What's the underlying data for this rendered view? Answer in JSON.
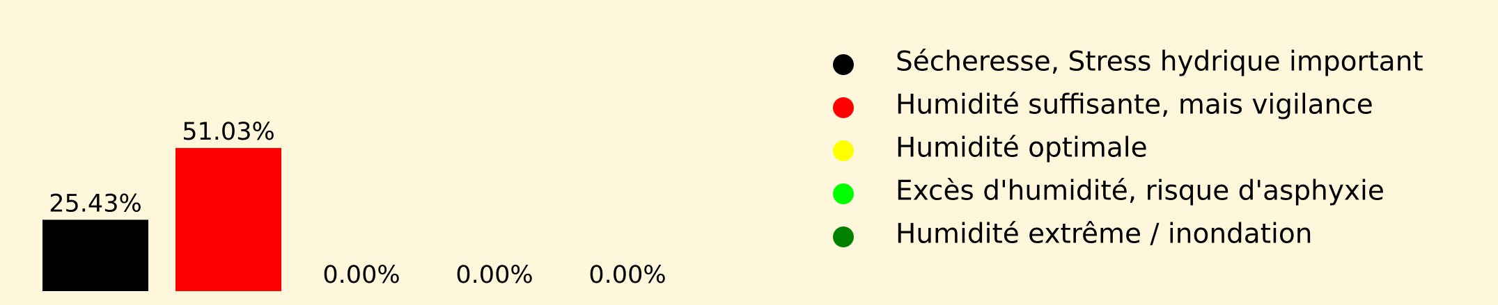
{
  "chart_data": {
    "type": "bar",
    "categories": [
      "Sécheresse, Stress hydrique important",
      "Humidité suffisante, mais vigilance",
      "Humidité optimale",
      "Excès d'humidité, risque d'asphyxie",
      "Humidité extrême / inondation"
    ],
    "values": [
      25.43,
      51.03,
      0.0,
      0.0,
      0.0
    ],
    "value_labels": [
      "25.43%",
      "51.03%",
      "0.00%",
      "0.00%",
      "0.00%"
    ],
    "colors": [
      "#000000",
      "#FF0000",
      "#FFFF00",
      "#00FF00",
      "#008000"
    ],
    "background_color": "#FFF7DC",
    "legend": {
      "placement": "right",
      "entries": [
        {
          "label": "Sécheresse, Stress hydrique important",
          "color": "#000000"
        },
        {
          "label": "Humidité suffisante, mais vigilance",
          "color": "#FF0000"
        },
        {
          "label": "Humidité optimale",
          "color": "#FFFF00"
        },
        {
          "label": "Excès d'humidité, risque d'asphyxie",
          "color": "#00FF00"
        },
        {
          "label": "Humidité extrême / inondation",
          "color": "#008000"
        }
      ]
    },
    "ylim": [
      0,
      51.03
    ],
    "grid": false,
    "title": "",
    "xlabel": "",
    "ylabel": ""
  }
}
